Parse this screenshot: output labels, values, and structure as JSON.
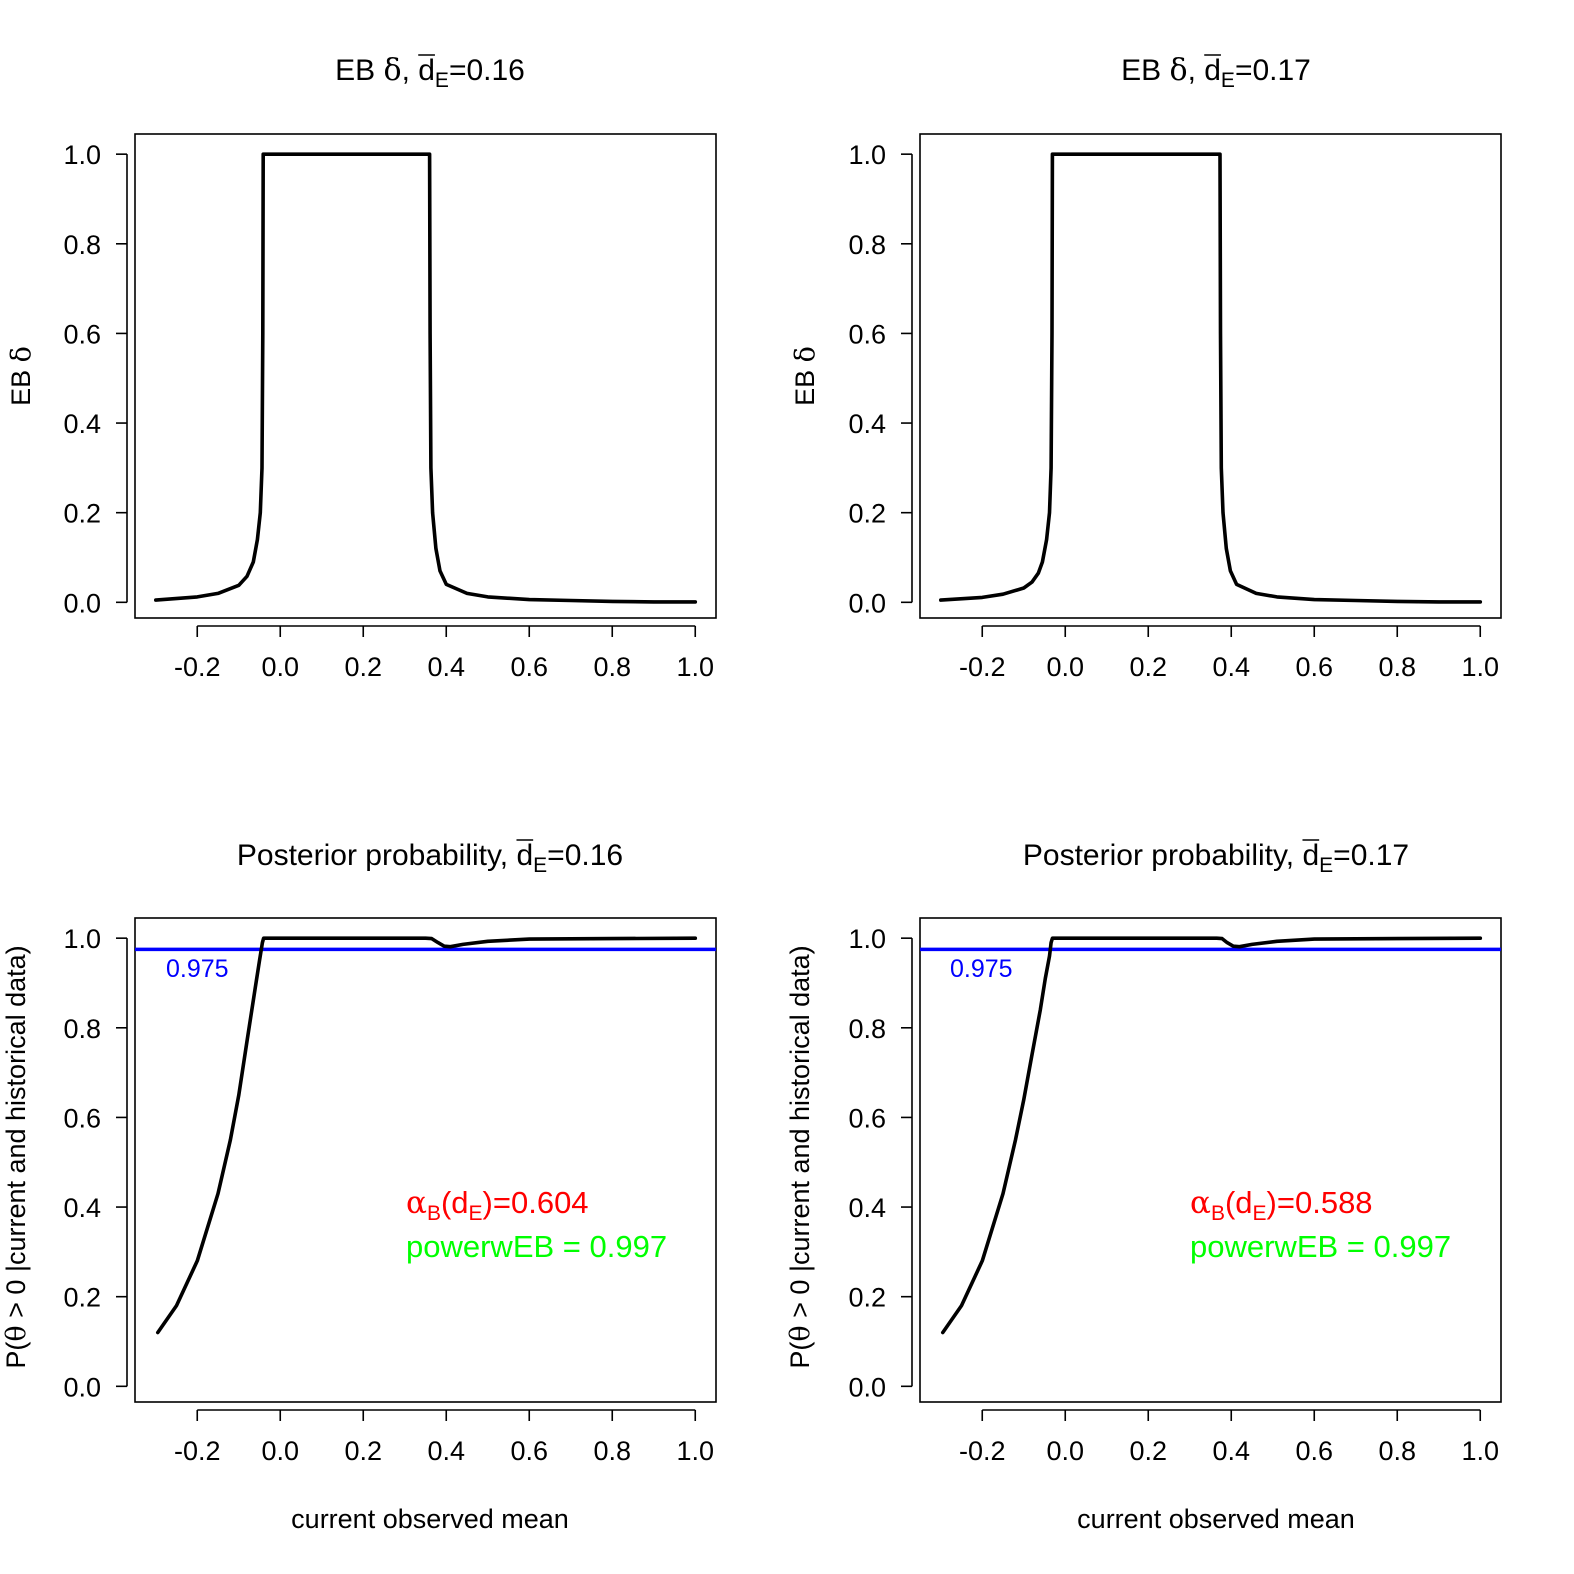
{
  "colors": {
    "curve": "#000000",
    "threshold": "#0000ff",
    "alpha_text": "#ff0000",
    "power_text": "#00ff00",
    "axes": "#000000",
    "background": "#ffffff"
  },
  "panels": [
    {
      "title": {
        "prefix": "EB ",
        "greek": "δ",
        "sep": ", ",
        "dbar": "d",
        "sub": "E",
        "value": "=0.16"
      },
      "ylabel": {
        "prefix": "EB ",
        "greek": "δ"
      },
      "xlabel": ""
    },
    {
      "title": {
        "prefix": "EB ",
        "greek": "δ",
        "sep": ", ",
        "dbar": "d",
        "sub": "E",
        "value": "=0.17"
      },
      "ylabel": {
        "prefix": "EB ",
        "greek": "δ"
      },
      "xlabel": ""
    },
    {
      "title": {
        "prefix": "Posterior probability, ",
        "dbar": "d",
        "sub": "E",
        "value": "=0.16"
      },
      "ylabel": {
        "pre": "P(",
        "greek": "θ",
        "post": " > 0 |current and historical data)"
      },
      "xlabel": "current observed mean",
      "threshold_label": "0.975",
      "alpha": {
        "greek": "α",
        "sub": "B",
        "open": "(d",
        "dsub": "E",
        "close": ")=0.604"
      },
      "power": "powerwEB =  0.997"
    },
    {
      "title": {
        "prefix": "Posterior probability, ",
        "dbar": "d",
        "sub": "E",
        "value": "=0.17"
      },
      "ylabel": {
        "pre": "P(",
        "greek": "θ",
        "post": " > 0 |current and historical data)"
      },
      "xlabel": "current observed mean",
      "threshold_label": "0.975",
      "alpha": {
        "greek": "α",
        "sub": "B",
        "open": "(d",
        "dsub": "E",
        "close": ")=0.588"
      },
      "power": "powerwEB =  0.997"
    }
  ],
  "chart_data": [
    {
      "type": "line",
      "title": "EB δ, d̄E=0.16",
      "xlabel": "",
      "ylabel": "EB δ",
      "xlim": [
        -0.35,
        1.05
      ],
      "ylim": [
        -0.035,
        1.045
      ],
      "xticks": [
        "-0.2",
        "0.0",
        "0.2",
        "0.4",
        "0.6",
        "0.8",
        "1.0"
      ],
      "yticks": [
        "0.0",
        "0.2",
        "0.4",
        "0.6",
        "0.8",
        "1.0"
      ],
      "series": [
        {
          "x": [
            -0.3,
            -0.2,
            -0.15,
            -0.1,
            -0.08,
            -0.065,
            -0.055,
            -0.048,
            -0.044,
            -0.042,
            -0.041,
            0.36,
            0.361,
            0.363,
            0.367,
            0.375,
            0.385,
            0.4,
            0.45,
            0.5,
            0.6,
            0.7,
            0.8,
            0.9,
            1.0
          ],
          "y": [
            0.005,
            0.012,
            0.02,
            0.038,
            0.058,
            0.09,
            0.14,
            0.2,
            0.3,
            0.6,
            1.0,
            1.0,
            0.6,
            0.3,
            0.2,
            0.12,
            0.07,
            0.04,
            0.02,
            0.012,
            0.006,
            0.004,
            0.002,
            0.001,
            0.001
          ]
        }
      ]
    },
    {
      "type": "line",
      "title": "EB δ, d̄E=0.17",
      "xlabel": "",
      "ylabel": "EB δ",
      "xlim": [
        -0.35,
        1.05
      ],
      "ylim": [
        -0.035,
        1.045
      ],
      "xticks": [
        "-0.2",
        "0.0",
        "0.2",
        "0.4",
        "0.6",
        "0.8",
        "1.0"
      ],
      "yticks": [
        "0.0",
        "0.2",
        "0.4",
        "0.6",
        "0.8",
        "1.0"
      ],
      "series": [
        {
          "x": [
            -0.3,
            -0.2,
            -0.15,
            -0.1,
            -0.08,
            -0.065,
            -0.055,
            -0.045,
            -0.038,
            -0.034,
            -0.032,
            -0.031,
            0.373,
            0.374,
            0.376,
            0.38,
            0.388,
            0.398,
            0.413,
            0.46,
            0.51,
            0.6,
            0.7,
            0.8,
            0.9,
            1.0
          ],
          "y": [
            0.005,
            0.011,
            0.018,
            0.032,
            0.045,
            0.065,
            0.09,
            0.14,
            0.2,
            0.3,
            0.6,
            1.0,
            1.0,
            0.6,
            0.3,
            0.2,
            0.12,
            0.07,
            0.04,
            0.02,
            0.012,
            0.006,
            0.004,
            0.002,
            0.001,
            0.001
          ]
        }
      ]
    },
    {
      "type": "line",
      "title": "Posterior probability, d̄E=0.16",
      "xlabel": "current observed mean",
      "ylabel": "P(θ > 0 |current and historical data)",
      "xlim": [
        -0.35,
        1.05
      ],
      "ylim": [
        -0.035,
        1.045
      ],
      "xticks": [
        "-0.2",
        "0.0",
        "0.2",
        "0.4",
        "0.6",
        "0.8",
        "1.0"
      ],
      "yticks": [
        "0.0",
        "0.2",
        "0.4",
        "0.6",
        "0.8",
        "1.0"
      ],
      "hline": {
        "y": 0.975,
        "label": "0.975"
      },
      "series": [
        {
          "x": [
            -0.295,
            -0.25,
            -0.2,
            -0.15,
            -0.12,
            -0.1,
            -0.08,
            -0.06,
            -0.05,
            -0.043,
            -0.04,
            0.35,
            0.365,
            0.38,
            0.395,
            0.41,
            0.44,
            0.5,
            0.6,
            0.8,
            1.0
          ],
          "y": [
            0.12,
            0.18,
            0.28,
            0.43,
            0.55,
            0.65,
            0.77,
            0.89,
            0.95,
            0.99,
            1.0,
            1.0,
            0.999,
            0.99,
            0.982,
            0.981,
            0.986,
            0.993,
            0.998,
            0.999,
            1.0
          ]
        }
      ],
      "annotations": [
        "αB(dE)=0.604",
        "powerwEB =  0.997"
      ]
    },
    {
      "type": "line",
      "title": "Posterior probability, d̄E=0.17",
      "xlabel": "current observed mean",
      "ylabel": "P(θ > 0 |current and historical data)",
      "xlim": [
        -0.35,
        1.05
      ],
      "ylim": [
        -0.035,
        1.045
      ],
      "xticks": [
        "-0.2",
        "0.0",
        "0.2",
        "0.4",
        "0.6",
        "0.8",
        "1.0"
      ],
      "yticks": [
        "0.0",
        "0.2",
        "0.4",
        "0.6",
        "0.8",
        "1.0"
      ],
      "hline": {
        "y": 0.975,
        "label": "0.975"
      },
      "series": [
        {
          "x": [
            -0.295,
            -0.25,
            -0.2,
            -0.15,
            -0.12,
            -0.1,
            -0.08,
            -0.06,
            -0.048,
            -0.038,
            -0.034,
            -0.031,
            0.365,
            0.378,
            0.39,
            0.405,
            0.42,
            0.45,
            0.51,
            0.6,
            0.8,
            1.0
          ],
          "y": [
            0.12,
            0.18,
            0.28,
            0.43,
            0.55,
            0.64,
            0.74,
            0.84,
            0.91,
            0.96,
            0.99,
            1.0,
            1.0,
            0.999,
            0.99,
            0.982,
            0.981,
            0.986,
            0.993,
            0.998,
            0.999,
            1.0
          ]
        }
      ],
      "annotations": [
        "αB(dE)=0.588",
        "powerwEB =  0.997"
      ]
    }
  ]
}
